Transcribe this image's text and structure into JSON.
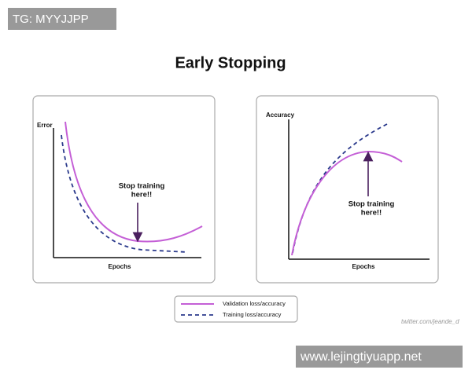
{
  "watermark": "TG: MYYJJPP",
  "title": "Early Stopping",
  "left_panel": {
    "y_label": "Error",
    "x_label": "Epochs",
    "annotation": [
      "Stop training",
      "here!!"
    ]
  },
  "right_panel": {
    "y_label": "Accuracy",
    "x_label": "Epochs",
    "annotation": [
      "Stop training",
      "here!!"
    ]
  },
  "legend": [
    "Validation loss/accuracy",
    "Training loss/accuracy"
  ],
  "credit": "twitter.com/jeande_d",
  "footer_watermark": "www.lejingtiyuapp.net"
}
